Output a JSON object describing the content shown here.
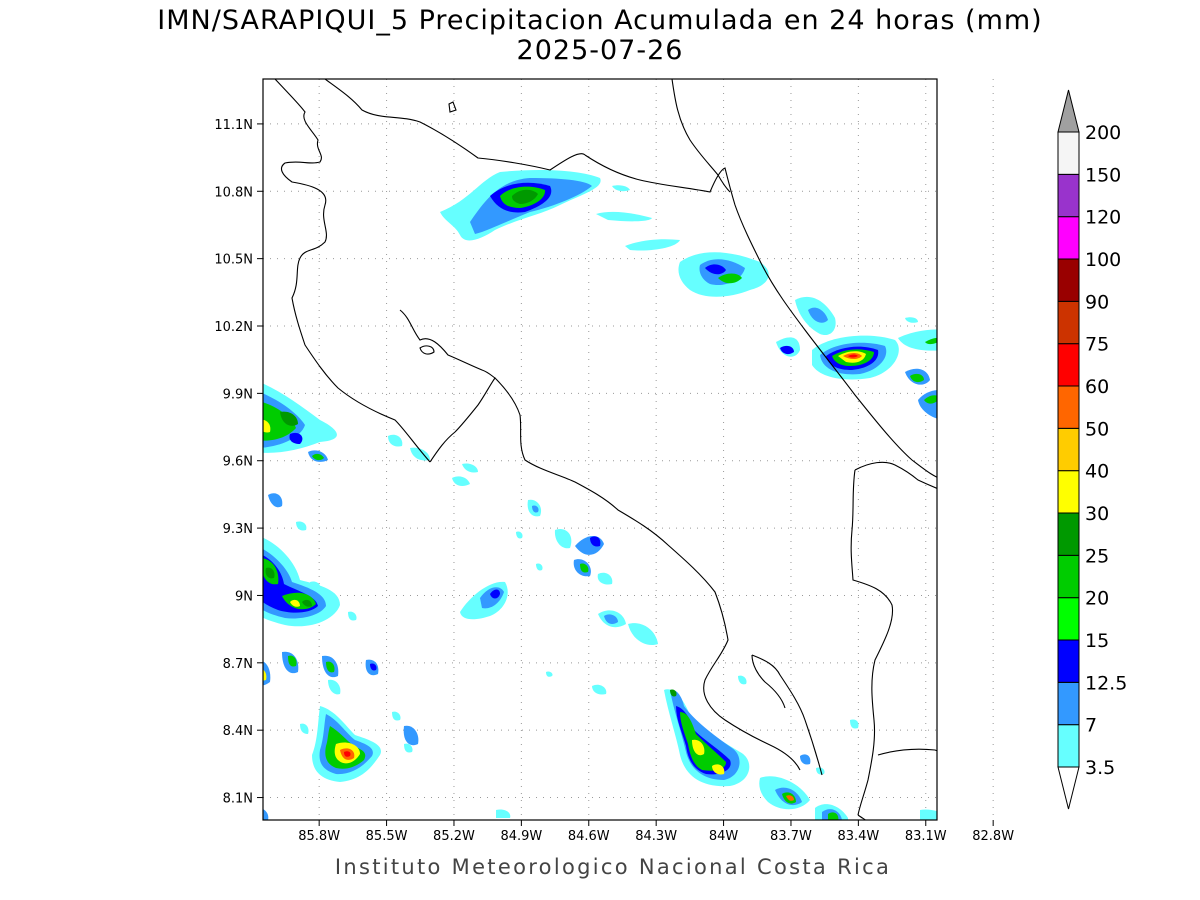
{
  "title": {
    "line1": "IMN/SARAPIQUI_5 Precipitacion Acumulada en 24 horas (mm)",
    "line2": "2025-07-26"
  },
  "footer": "Instituto Meteorologico Nacional Costa Rica",
  "map": {
    "lon_range": [
      -86.05,
      -83.05
    ],
    "lat_range": [
      8.0,
      11.3
    ],
    "x_ticks": [
      {
        "value": -85.8,
        "label": "85.8W"
      },
      {
        "value": -85.5,
        "label": "85.5W"
      },
      {
        "value": -85.2,
        "label": "85.2W"
      },
      {
        "value": -84.9,
        "label": "84.9W"
      },
      {
        "value": -84.6,
        "label": "84.6W"
      },
      {
        "value": -84.3,
        "label": "84.3W"
      },
      {
        "value": -84.0,
        "label": "84W"
      },
      {
        "value": -83.7,
        "label": "83.7W"
      },
      {
        "value": -83.4,
        "label": "83.4W"
      },
      {
        "value": -83.1,
        "label": "83.1W"
      },
      {
        "value": -82.8,
        "label": "82.8W"
      }
    ],
    "y_ticks": [
      {
        "value": 8.1,
        "label": "8.1N"
      },
      {
        "value": 8.4,
        "label": "8.4N"
      },
      {
        "value": 8.7,
        "label": "8.7N"
      },
      {
        "value": 9.0,
        "label": "9N"
      },
      {
        "value": 9.3,
        "label": "9.3N"
      },
      {
        "value": 9.6,
        "label": "9.6N"
      },
      {
        "value": 9.9,
        "label": "9.9N"
      },
      {
        "value": 10.2,
        "label": "10.2N"
      },
      {
        "value": 10.5,
        "label": "10.5N"
      },
      {
        "value": 10.8,
        "label": "10.8N"
      },
      {
        "value": 11.1,
        "label": "11.1N"
      }
    ],
    "grid": "dotted"
  },
  "colorbar": {
    "levels": [
      {
        "label": "3.5",
        "color": "#66ffff"
      },
      {
        "label": "7",
        "color": "#3399ff"
      },
      {
        "label": "12.5",
        "color": "#0000ff"
      },
      {
        "label": "15",
        "color": "#00ff00"
      },
      {
        "label": "20",
        "color": "#00cc00"
      },
      {
        "label": "25",
        "color": "#009900"
      },
      {
        "label": "30",
        "color": "#ffff00"
      },
      {
        "label": "40",
        "color": "#ffcc00"
      },
      {
        "label": "50",
        "color": "#ff6600"
      },
      {
        "label": "60",
        "color": "#ff0000"
      },
      {
        "label": "75",
        "color": "#cc3300"
      },
      {
        "label": "90",
        "color": "#990000"
      },
      {
        "label": "100",
        "color": "#ff00ff"
      },
      {
        "label": "120",
        "color": "#9933cc"
      },
      {
        "label": "150",
        "color": "#f5f5f5"
      },
      {
        "label": "200",
        "color": "#a0a0a0"
      }
    ],
    "below_color": "#ffffff",
    "above_color": "#a0a0a0"
  }
}
